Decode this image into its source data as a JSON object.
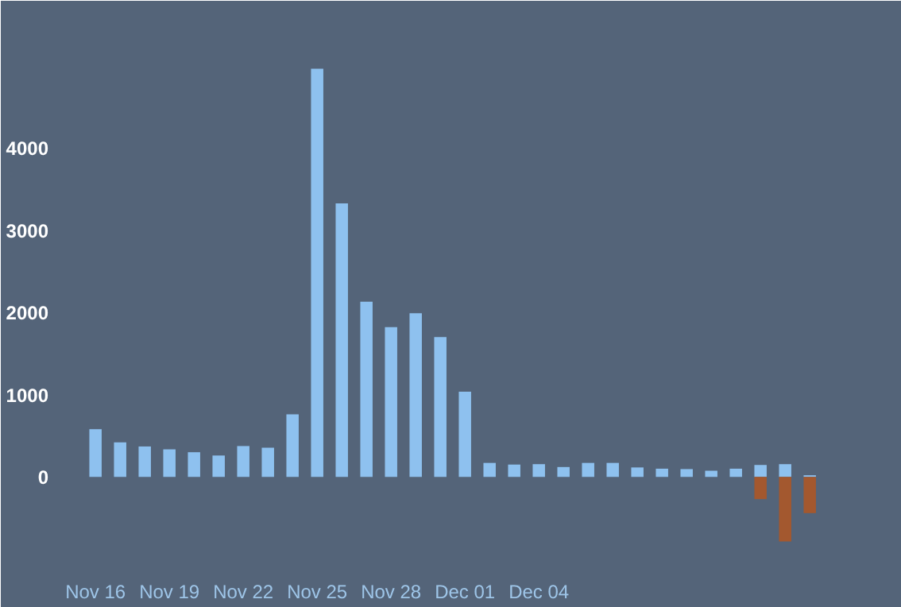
{
  "chart_data": {
    "type": "bar",
    "categories": [
      "Nov 16",
      null,
      null,
      "Nov 19",
      null,
      null,
      "Nov 22",
      null,
      null,
      "Nov 25",
      null,
      null,
      "Nov 28",
      null,
      null,
      "Dec 01",
      null,
      null,
      "Dec 04",
      null,
      null,
      null,
      null,
      null,
      null,
      null,
      null,
      null,
      null,
      null
    ],
    "series": [
      {
        "color": "#8ec1ef",
        "values": [
          580,
          420,
          370,
          335,
          300,
          260,
          375,
          355,
          760,
          4960,
          3325,
          2130,
          1820,
          1990,
          1700,
          1035,
          170,
          150,
          155,
          120,
          170,
          170,
          115,
          100,
          95,
          75,
          100,
          145,
          155,
          20
        ]
      },
      {
        "color": "#a3582f",
        "values": [
          null,
          null,
          null,
          null,
          null,
          null,
          null,
          null,
          null,
          null,
          null,
          null,
          null,
          null,
          null,
          null,
          null,
          null,
          null,
          null,
          null,
          null,
          null,
          null,
          null,
          null,
          null,
          -270,
          -785,
          -440
        ]
      }
    ],
    "ylim": [
      -1050,
      5400
    ],
    "yticks": [
      0,
      1000,
      2000,
      3000,
      4000
    ],
    "grid": false
  }
}
